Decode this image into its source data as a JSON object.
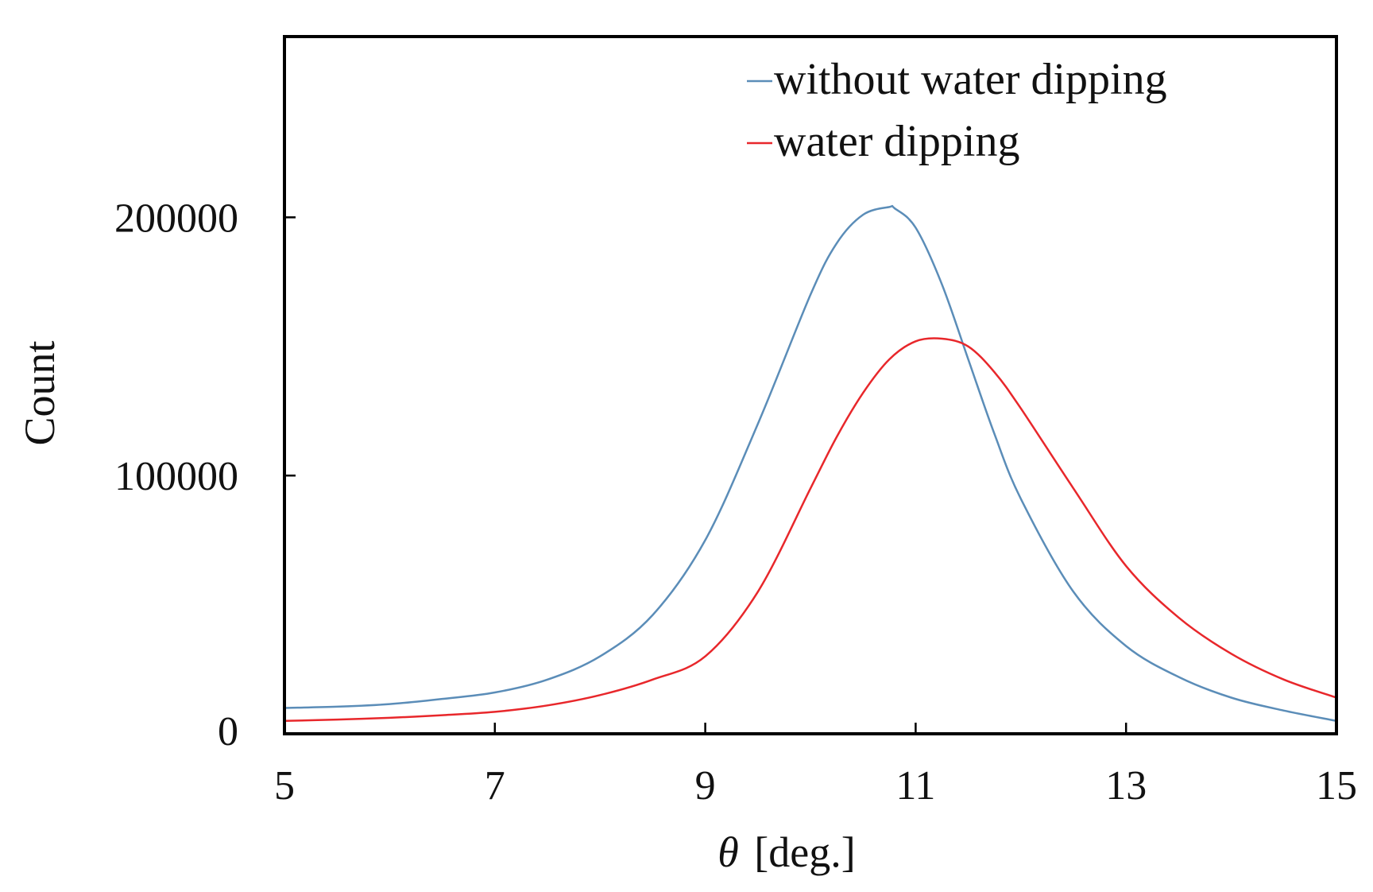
{
  "chart_data": {
    "type": "line",
    "title": "",
    "xlabel_symbol": "θ",
    "xlabel_unit": "[deg.]",
    "ylabel": "Count",
    "xlim": [
      5,
      15
    ],
    "ylim": [
      0,
      270000
    ],
    "xticks": [
      "5",
      "7",
      "9",
      "11",
      "13",
      "15"
    ],
    "yticks": [
      "0",
      "100000",
      "200000"
    ],
    "grid": false,
    "legend_position": "top-right",
    "series": [
      {
        "name": "without water dipping",
        "color": "#5b8db8",
        "x": [
          5.0,
          5.5,
          6.0,
          6.5,
          7.0,
          7.5,
          8.0,
          8.5,
          9.0,
          9.5,
          10.0,
          10.25,
          10.5,
          10.75,
          10.8,
          11.0,
          11.25,
          11.5,
          11.75,
          12.0,
          12.5,
          13.0,
          13.5,
          14.0,
          14.5,
          15.0
        ],
        "y": [
          10000,
          10500,
          11500,
          13500,
          16000,
          21000,
          30000,
          46000,
          75000,
          120000,
          170000,
          190000,
          201000,
          204000,
          203500,
          196000,
          174000,
          145000,
          116000,
          91000,
          55000,
          34000,
          22000,
          14000,
          9000,
          5000
        ]
      },
      {
        "name": "water dipping",
        "color": "#e8272b",
        "x": [
          5.0,
          5.5,
          6.0,
          6.5,
          7.0,
          7.5,
          8.0,
          8.5,
          9.0,
          9.5,
          10.0,
          10.25,
          10.5,
          10.75,
          11.0,
          11.25,
          11.5,
          11.75,
          12.0,
          12.5,
          13.0,
          13.5,
          14.0,
          14.5,
          15.0
        ],
        "y": [
          5000,
          5500,
          6200,
          7200,
          8500,
          11000,
          15000,
          21000,
          30000,
          55000,
          95000,
          115000,
          132000,
          145000,
          152000,
          153000,
          150000,
          140000,
          126000,
          95000,
          65000,
          45000,
          31000,
          21000,
          14000
        ]
      }
    ]
  }
}
